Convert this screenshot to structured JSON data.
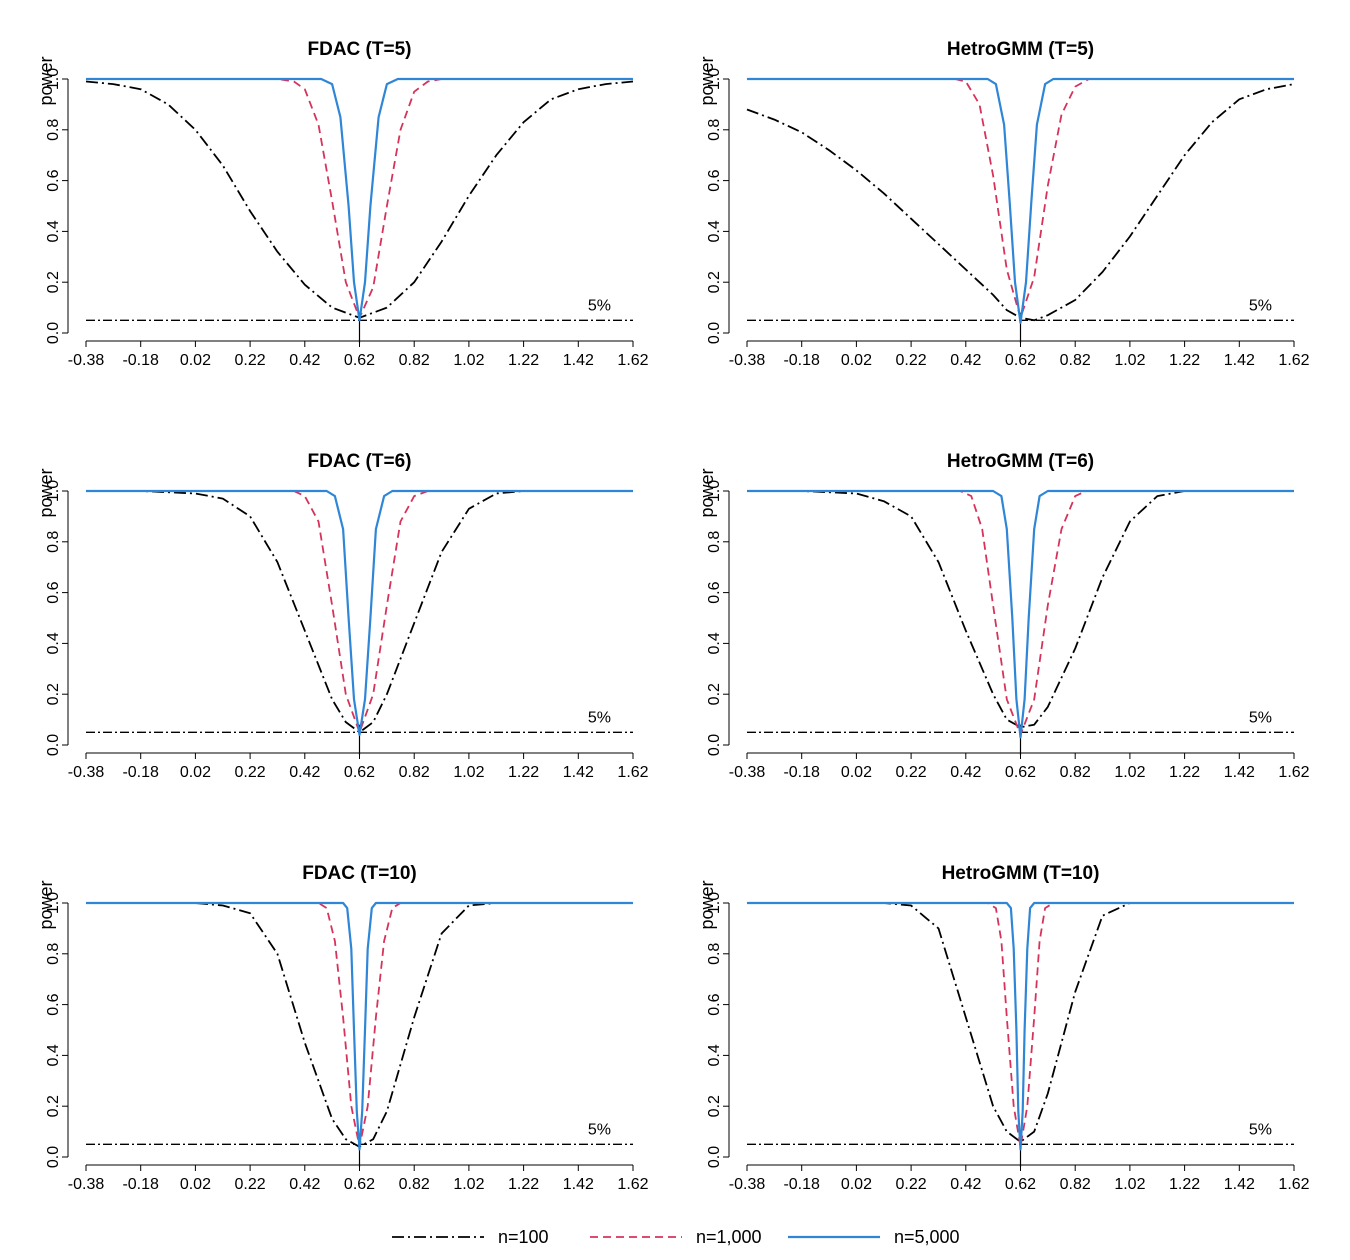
{
  "chart_data": [
    {
      "type": "line",
      "title": "FDAC (T=5)",
      "ylabel": "power",
      "xlim": [
        -0.38,
        1.62
      ],
      "ylim": [
        0,
        1
      ],
      "x_ticks": [
        "-0.38",
        "-0.18",
        "0.02",
        "0.22",
        "0.42",
        "0.62",
        "0.82",
        "1.02",
        "1.22",
        "1.42",
        "1.62"
      ],
      "y_ticks": [
        "0.0",
        "0.2",
        "0.4",
        "0.6",
        "0.8",
        "1.0"
      ],
      "reference_line": {
        "y": 0.05,
        "label": "5%"
      },
      "true_value": 0.62,
      "series": [
        {
          "name": "n=100",
          "x": [
            -0.38,
            -0.28,
            -0.18,
            -0.08,
            0.02,
            0.12,
            0.22,
            0.32,
            0.42,
            0.52,
            0.57,
            0.62,
            0.67,
            0.72,
            0.82,
            0.92,
            1.02,
            1.12,
            1.22,
            1.32,
            1.42,
            1.52,
            1.62
          ],
          "values": [
            0.99,
            0.98,
            0.96,
            0.9,
            0.8,
            0.66,
            0.48,
            0.32,
            0.19,
            0.1,
            0.08,
            0.06,
            0.08,
            0.1,
            0.2,
            0.36,
            0.54,
            0.7,
            0.83,
            0.92,
            0.96,
            0.98,
            0.99
          ]
        },
        {
          "name": "n=1,000",
          "x": [
            -0.38,
            0.32,
            0.38,
            0.42,
            0.47,
            0.52,
            0.57,
            0.62,
            0.67,
            0.72,
            0.77,
            0.82,
            0.87,
            0.92,
            1.62
          ],
          "values": [
            1.0,
            1.0,
            0.99,
            0.96,
            0.82,
            0.52,
            0.2,
            0.06,
            0.18,
            0.5,
            0.8,
            0.95,
            0.99,
            1.0,
            1.0
          ]
        },
        {
          "name": "n=5,000",
          "x": [
            -0.38,
            0.48,
            0.52,
            0.55,
            0.58,
            0.6,
            0.62,
            0.64,
            0.66,
            0.69,
            0.72,
            0.76,
            1.62
          ],
          "values": [
            1.0,
            1.0,
            0.98,
            0.85,
            0.5,
            0.2,
            0.05,
            0.2,
            0.5,
            0.85,
            0.98,
            1.0,
            1.0
          ]
        }
      ]
    },
    {
      "type": "line",
      "title": "HetroGMM (T=5)",
      "ylabel": "power",
      "xlim": [
        -0.38,
        1.62
      ],
      "ylim": [
        0,
        1
      ],
      "x_ticks": [
        "-0.38",
        "-0.18",
        "0.02",
        "0.22",
        "0.42",
        "0.62",
        "0.82",
        "1.02",
        "1.22",
        "1.42",
        "1.62"
      ],
      "y_ticks": [
        "0.0",
        "0.2",
        "0.4",
        "0.6",
        "0.8",
        "1.0"
      ],
      "reference_line": {
        "y": 0.05,
        "label": "5%"
      },
      "true_value": 0.62,
      "series": [
        {
          "name": "n=100",
          "x": [
            -0.38,
            -0.28,
            -0.18,
            -0.08,
            0.02,
            0.12,
            0.22,
            0.32,
            0.42,
            0.52,
            0.57,
            0.62,
            0.67,
            0.72,
            0.82,
            0.92,
            1.02,
            1.12,
            1.22,
            1.32,
            1.42,
            1.52,
            1.62
          ],
          "values": [
            0.88,
            0.84,
            0.79,
            0.72,
            0.64,
            0.55,
            0.45,
            0.35,
            0.25,
            0.15,
            0.09,
            0.06,
            0.05,
            0.07,
            0.13,
            0.24,
            0.38,
            0.54,
            0.7,
            0.83,
            0.92,
            0.96,
            0.98
          ]
        },
        {
          "name": "n=1,000",
          "x": [
            -0.38,
            0.38,
            0.42,
            0.47,
            0.52,
            0.57,
            0.62,
            0.67,
            0.72,
            0.77,
            0.82,
            0.87,
            0.92,
            1.62
          ],
          "values": [
            1.0,
            1.0,
            0.99,
            0.9,
            0.62,
            0.25,
            0.06,
            0.22,
            0.58,
            0.86,
            0.97,
            1.0,
            1.0,
            1.0
          ]
        },
        {
          "name": "n=5,000",
          "x": [
            -0.38,
            0.5,
            0.53,
            0.56,
            0.58,
            0.6,
            0.62,
            0.64,
            0.66,
            0.68,
            0.71,
            0.74,
            1.62
          ],
          "values": [
            1.0,
            1.0,
            0.98,
            0.82,
            0.52,
            0.2,
            0.04,
            0.2,
            0.52,
            0.82,
            0.98,
            1.0,
            1.0
          ]
        }
      ]
    },
    {
      "type": "line",
      "title": "FDAC (T=6)",
      "ylabel": "power",
      "xlim": [
        -0.38,
        1.62
      ],
      "ylim": [
        0,
        1
      ],
      "x_ticks": [
        "-0.38",
        "-0.18",
        "0.02",
        "0.22",
        "0.42",
        "0.62",
        "0.82",
        "1.02",
        "1.22",
        "1.42",
        "1.62"
      ],
      "y_ticks": [
        "0.0",
        "0.2",
        "0.4",
        "0.6",
        "0.8",
        "1.0"
      ],
      "reference_line": {
        "y": 0.05,
        "label": "5%"
      },
      "true_value": 0.62,
      "series": [
        {
          "name": "n=100",
          "x": [
            -0.38,
            -0.18,
            0.02,
            0.12,
            0.22,
            0.32,
            0.42,
            0.52,
            0.57,
            0.62,
            0.67,
            0.72,
            0.82,
            0.92,
            1.02,
            1.12,
            1.22,
            1.42,
            1.62
          ],
          "values": [
            1.0,
            1.0,
            0.99,
            0.97,
            0.9,
            0.72,
            0.45,
            0.18,
            0.09,
            0.05,
            0.09,
            0.2,
            0.48,
            0.76,
            0.93,
            0.99,
            1.0,
            1.0,
            1.0
          ]
        },
        {
          "name": "n=1,000",
          "x": [
            -0.38,
            0.38,
            0.42,
            0.47,
            0.52,
            0.57,
            0.62,
            0.67,
            0.72,
            0.77,
            0.82,
            0.87,
            1.62
          ],
          "values": [
            1.0,
            1.0,
            0.98,
            0.88,
            0.55,
            0.2,
            0.05,
            0.2,
            0.55,
            0.88,
            0.98,
            1.0,
            1.0
          ]
        },
        {
          "name": "n=5,000",
          "x": [
            -0.38,
            0.5,
            0.53,
            0.56,
            0.58,
            0.6,
            0.62,
            0.64,
            0.66,
            0.68,
            0.71,
            0.74,
            1.62
          ],
          "values": [
            1.0,
            1.0,
            0.98,
            0.85,
            0.5,
            0.18,
            0.04,
            0.18,
            0.5,
            0.85,
            0.98,
            1.0,
            1.0
          ]
        }
      ]
    },
    {
      "type": "line",
      "title": "HetroGMM (T=6)",
      "ylabel": "power",
      "xlim": [
        -0.38,
        1.62
      ],
      "ylim": [
        0,
        1
      ],
      "x_ticks": [
        "-0.38",
        "-0.18",
        "0.02",
        "0.22",
        "0.42",
        "0.62",
        "0.82",
        "1.02",
        "1.22",
        "1.42",
        "1.62"
      ],
      "y_ticks": [
        "0.0",
        "0.2",
        "0.4",
        "0.6",
        "0.8",
        "1.0"
      ],
      "reference_line": {
        "y": 0.05,
        "label": "5%"
      },
      "true_value": 0.62,
      "series": [
        {
          "name": "n=100",
          "x": [
            -0.38,
            -0.18,
            0.02,
            0.12,
            0.22,
            0.32,
            0.42,
            0.52,
            0.57,
            0.62,
            0.67,
            0.72,
            0.82,
            0.92,
            1.02,
            1.12,
            1.22,
            1.42,
            1.62
          ],
          "values": [
            1.0,
            1.0,
            0.99,
            0.96,
            0.9,
            0.72,
            0.45,
            0.2,
            0.1,
            0.07,
            0.08,
            0.15,
            0.38,
            0.66,
            0.88,
            0.98,
            1.0,
            1.0,
            1.0
          ]
        },
        {
          "name": "n=1,000",
          "x": [
            -0.38,
            0.4,
            0.44,
            0.48,
            0.52,
            0.57,
            0.62,
            0.67,
            0.72,
            0.77,
            0.82,
            0.86,
            1.62
          ],
          "values": [
            1.0,
            1.0,
            0.98,
            0.85,
            0.55,
            0.18,
            0.04,
            0.18,
            0.55,
            0.85,
            0.98,
            1.0,
            1.0
          ]
        },
        {
          "name": "n=5,000",
          "x": [
            -0.38,
            0.52,
            0.55,
            0.57,
            0.59,
            0.605,
            0.62,
            0.635,
            0.65,
            0.67,
            0.69,
            0.72,
            1.62
          ],
          "values": [
            1.0,
            1.0,
            0.98,
            0.85,
            0.5,
            0.18,
            0.03,
            0.18,
            0.5,
            0.85,
            0.98,
            1.0,
            1.0
          ]
        }
      ]
    },
    {
      "type": "line",
      "title": "FDAC (T=10)",
      "ylabel": "power",
      "xlim": [
        -0.38,
        1.62
      ],
      "ylim": [
        0,
        1
      ],
      "x_ticks": [
        "-0.38",
        "-0.18",
        "0.02",
        "0.22",
        "0.42",
        "0.62",
        "0.82",
        "1.02",
        "1.22",
        "1.42",
        "1.62"
      ],
      "y_ticks": [
        "0.0",
        "0.2",
        "0.4",
        "0.6",
        "0.8",
        "1.0"
      ],
      "reference_line": {
        "y": 0.05,
        "label": "5%"
      },
      "true_value": 0.62,
      "series": [
        {
          "name": "n=100",
          "x": [
            -0.38,
            0.02,
            0.12,
            0.22,
            0.32,
            0.42,
            0.52,
            0.57,
            0.62,
            0.67,
            0.72,
            0.82,
            0.92,
            1.02,
            1.12,
            1.62
          ],
          "values": [
            1.0,
            1.0,
            0.99,
            0.96,
            0.8,
            0.45,
            0.15,
            0.07,
            0.04,
            0.07,
            0.18,
            0.55,
            0.88,
            0.99,
            1.0,
            1.0
          ]
        },
        {
          "name": "n=1,000",
          "x": [
            -0.38,
            0.47,
            0.5,
            0.53,
            0.56,
            0.59,
            0.62,
            0.65,
            0.68,
            0.71,
            0.74,
            0.77,
            1.62
          ],
          "values": [
            1.0,
            1.0,
            0.98,
            0.85,
            0.55,
            0.2,
            0.04,
            0.2,
            0.55,
            0.85,
            0.98,
            1.0,
            1.0
          ]
        },
        {
          "name": "n=5,000",
          "x": [
            -0.38,
            0.56,
            0.575,
            0.59,
            0.6,
            0.61,
            0.62,
            0.63,
            0.64,
            0.65,
            0.665,
            0.68,
            1.62
          ],
          "values": [
            1.0,
            1.0,
            0.98,
            0.82,
            0.5,
            0.18,
            0.03,
            0.18,
            0.5,
            0.82,
            0.98,
            1.0,
            1.0
          ]
        }
      ]
    },
    {
      "type": "line",
      "title": "HetroGMM (T=10)",
      "ylabel": "power",
      "xlim": [
        -0.38,
        1.62
      ],
      "ylim": [
        0,
        1
      ],
      "x_ticks": [
        "-0.38",
        "-0.18",
        "0.02",
        "0.22",
        "0.42",
        "0.62",
        "0.82",
        "1.02",
        "1.22",
        "1.42",
        "1.62"
      ],
      "y_ticks": [
        "0.0",
        "0.2",
        "0.4",
        "0.6",
        "0.8",
        "1.0"
      ],
      "reference_line": {
        "y": 0.05,
        "label": "5%"
      },
      "true_value": 0.62,
      "series": [
        {
          "name": "n=100",
          "x": [
            -0.38,
            0.12,
            0.22,
            0.32,
            0.42,
            0.52,
            0.57,
            0.62,
            0.67,
            0.72,
            0.82,
            0.92,
            1.02,
            1.62
          ],
          "values": [
            1.0,
            1.0,
            0.99,
            0.9,
            0.55,
            0.2,
            0.1,
            0.06,
            0.1,
            0.25,
            0.65,
            0.95,
            1.0,
            1.0
          ]
        },
        {
          "name": "n=1,000",
          "x": [
            -0.38,
            0.5,
            0.53,
            0.55,
            0.57,
            0.595,
            0.62,
            0.645,
            0.67,
            0.69,
            0.71,
            0.74,
            1.62
          ],
          "values": [
            1.0,
            1.0,
            0.98,
            0.85,
            0.55,
            0.2,
            0.04,
            0.2,
            0.55,
            0.85,
            0.98,
            1.0,
            1.0
          ]
        },
        {
          "name": "n=5,000",
          "x": [
            -0.38,
            0.57,
            0.585,
            0.595,
            0.605,
            0.612,
            0.62,
            0.628,
            0.635,
            0.645,
            0.655,
            0.67,
            1.62
          ],
          "values": [
            1.0,
            1.0,
            0.98,
            0.82,
            0.5,
            0.18,
            0.03,
            0.18,
            0.5,
            0.82,
            0.98,
            1.0,
            1.0
          ]
        }
      ]
    }
  ],
  "legend": {
    "items": [
      {
        "label": "n=100",
        "color": "#000000",
        "style": "dashdot"
      },
      {
        "label": "n=1,000",
        "color": "#d6335b",
        "style": "dashed"
      },
      {
        "label": "n=5,000",
        "color": "#2f86d6",
        "style": "solid"
      }
    ]
  },
  "colors": {
    "n100": "#000000",
    "n1000": "#d6335b",
    "n5000": "#2f86d6",
    "reference": "#000000"
  }
}
